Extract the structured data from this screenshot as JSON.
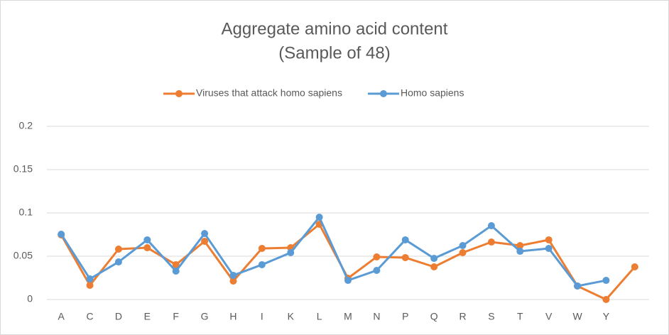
{
  "chart_data": {
    "type": "line",
    "title": "Aggregate amino acid content",
    "subtitle": "(Sample of 48)",
    "categories": [
      "A",
      "C",
      "D",
      "E",
      "F",
      "G",
      "H",
      "I",
      "K",
      "L",
      "M",
      "N",
      "P",
      "Q",
      "R",
      "S",
      "T",
      "V",
      "W",
      "Y",
      null
    ],
    "series": [
      {
        "name": "Viruses that attack homo sapiens",
        "color": "#ed7d31",
        "values": [
          0.0746,
          0.0164,
          0.0582,
          0.0598,
          0.0402,
          0.0672,
          0.0213,
          0.059,
          0.0598,
          0.0869,
          0.0246,
          0.0492,
          0.0484,
          0.0377,
          0.0541,
          0.0664,
          0.0623,
          0.0689,
          0.0156,
          0,
          0.0377
        ]
      },
      {
        "name": "Homo sapiens",
        "color": "#5b9bd5",
        "values": [
          0.0754,
          0.0238,
          0.0434,
          0.0689,
          0.0328,
          0.0762,
          0.0279,
          0.0402,
          0.0541,
          0.0951,
          0.0221,
          0.0336,
          0.0689,
          0.0475,
          0.0623,
          0.0852,
          0.0557,
          0.059,
          0.0156,
          0.0221,
          null
        ]
      }
    ],
    "ylim": [
      0,
      0.2
    ],
    "yticks": [
      0,
      0.05,
      0.1,
      0.15,
      0.2
    ],
    "grid": true,
    "legend": "top"
  }
}
